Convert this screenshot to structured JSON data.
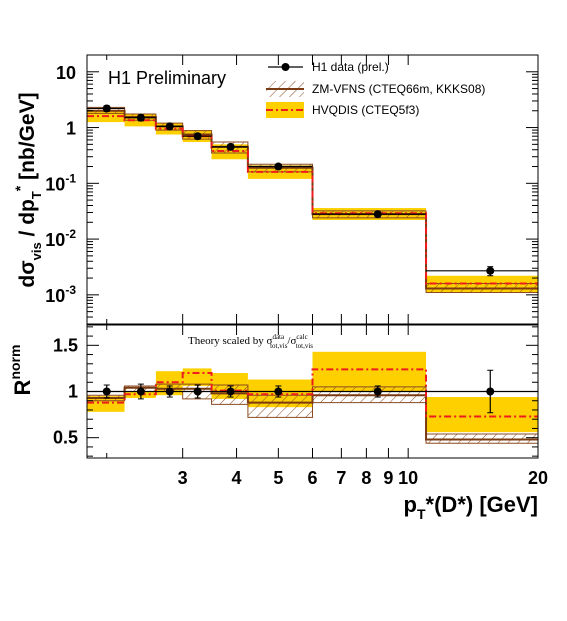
{
  "chart_data": [
    {
      "type": "line",
      "panel": "upper",
      "title": "H1 Preliminary",
      "xlabel": "",
      "ylabel": "dσ_vis / dp_T* [nb/GeV]",
      "ylabel_parts": {
        "main": "dσ",
        "sub": "vis",
        "mid": " / dp",
        "sub2": "T",
        "sup": "*",
        "unit": " [nb/GeV]"
      },
      "yscale": "log",
      "xscale": "log",
      "xlim": [
        1.8,
        20
      ],
      "ylim": [
        0.0003,
        20
      ],
      "yticks": [
        {
          "value": 0.001,
          "base": "10",
          "exp": "-3"
        },
        {
          "value": 0.01,
          "base": "10",
          "exp": "-2"
        },
        {
          "value": 0.1,
          "base": "10",
          "exp": "-1"
        },
        {
          "value": 1,
          "base": "1",
          "exp": ""
        },
        {
          "value": 10,
          "base": "10",
          "exp": ""
        }
      ],
      "legend_position": "top-right",
      "legend": [
        "H1 data (prel.)",
        "ZM-VFNS (CTEQ66m, KKKS08)",
        "HVQDIS (CTEQ5f3)"
      ],
      "bin_edges": [
        1.8,
        2.2,
        2.6,
        3.0,
        3.5,
        4.25,
        6.0,
        11.0,
        20.0
      ],
      "series": [
        {
          "name": "H1 data (prel.)",
          "kind": "points",
          "x": [
            2.0,
            2.4,
            2.8,
            3.25,
            3.875,
            5.0,
            8.5,
            15.5
          ],
          "y": [
            2.2,
            1.5,
            1.05,
            0.7,
            0.45,
            0.2,
            0.028,
            0.0027
          ],
          "yerr": [
            0.25,
            0.18,
            0.12,
            0.08,
            0.05,
            0.02,
            0.003,
            0.0005
          ]
        },
        {
          "name": "ZM-VFNS (CTEQ66m, KKKS08)",
          "kind": "step-band",
          "central": [
            2.0,
            1.55,
            1.05,
            0.75,
            0.45,
            0.19,
            0.028,
            0.0013
          ],
          "low": [
            1.8,
            1.35,
            0.9,
            0.62,
            0.35,
            0.16,
            0.024,
            0.0011
          ],
          "high": [
            2.3,
            1.75,
            1.2,
            0.88,
            0.55,
            0.22,
            0.032,
            0.0016
          ]
        },
        {
          "name": "HVQDIS (CTEQ5f3)",
          "kind": "step-band",
          "central": [
            1.6,
            1.35,
            0.95,
            0.7,
            0.38,
            0.16,
            0.029,
            0.0016
          ],
          "low": [
            1.25,
            1.05,
            0.75,
            0.55,
            0.27,
            0.12,
            0.022,
            0.0011
          ],
          "high": [
            2.0,
            1.75,
            1.2,
            0.9,
            0.5,
            0.21,
            0.036,
            0.0022
          ]
        }
      ]
    },
    {
      "type": "line",
      "panel": "lower",
      "annotation": "Theory scaled by σ_tot,vis^data/σ_tot,vis^calc",
      "annotation_parts": {
        "text": "Theory scaled by σ",
        "sup1": "data",
        "sub1": "tot,vis",
        "mid": "/σ",
        "sup2": "calc",
        "sub2": "tot,vis"
      },
      "xlabel": "p_T*(D*) [GeV]",
      "xlabel_parts": {
        "main": "p",
        "sub": "T",
        "rest": "*(D*) [GeV]"
      },
      "ylabel": "R^norm",
      "ylabel_parts": {
        "main": "R",
        "sup": "norm"
      },
      "xscale": "log",
      "xlim": [
        1.8,
        20
      ],
      "ylim": [
        0.28,
        1.72
      ],
      "yticks": [
        0.5,
        1,
        1.5
      ],
      "ytick_labels": [
        "0.5",
        "1",
        "1.5"
      ],
      "xticks": [
        3,
        4,
        5,
        6,
        7,
        8,
        9,
        10,
        20
      ],
      "xtick_labels": [
        "3",
        "4",
        "5",
        "6",
        "7",
        "8",
        "9",
        "10",
        "20"
      ],
      "reference_line": 1,
      "bin_edges": [
        1.8,
        2.2,
        2.6,
        3.0,
        3.5,
        4.25,
        6.0,
        11.0,
        20.0
      ],
      "series": [
        {
          "name": "H1 data (prel.)",
          "kind": "points",
          "x": [
            2.0,
            2.4,
            2.8,
            3.25,
            3.875,
            5.0,
            8.5,
            15.5
          ],
          "y": [
            1.0,
            1.0,
            1.0,
            1.0,
            1.0,
            1.0,
            1.0,
            1.0
          ],
          "yerr": [
            0.07,
            0.08,
            0.06,
            0.07,
            0.06,
            0.06,
            0.06,
            0.23
          ]
        },
        {
          "name": "ZM-VFNS (CTEQ66m, KKKS08)",
          "kind": "step-band",
          "central": [
            0.93,
            1.04,
            1.03,
            1.03,
            0.98,
            0.88,
            0.96,
            0.48
          ],
          "low": [
            0.9,
            1.0,
            1.0,
            0.92,
            0.86,
            0.72,
            0.88,
            0.44
          ],
          "high": [
            0.96,
            1.06,
            1.08,
            1.08,
            1.07,
            0.96,
            1.05,
            0.54
          ]
        },
        {
          "name": "HVQDIS (CTEQ5f3)",
          "kind": "step-band",
          "central": [
            0.88,
            0.97,
            1.1,
            1.2,
            1.01,
            0.97,
            1.24,
            0.73
          ],
          "low": [
            0.78,
            0.93,
            0.96,
            1.06,
            0.92,
            0.83,
            1.0,
            0.56
          ],
          "high": [
            0.95,
            1.0,
            1.22,
            1.25,
            1.2,
            1.13,
            1.43,
            0.94
          ]
        }
      ]
    }
  ],
  "colors": {
    "axis": "#000000",
    "data_points": "#000000",
    "zm_line": "#7a3a12",
    "zm_hatch": "#8b4a20",
    "hvq_band": "#ffd000",
    "hvq_line": "#ee1c1c"
  }
}
